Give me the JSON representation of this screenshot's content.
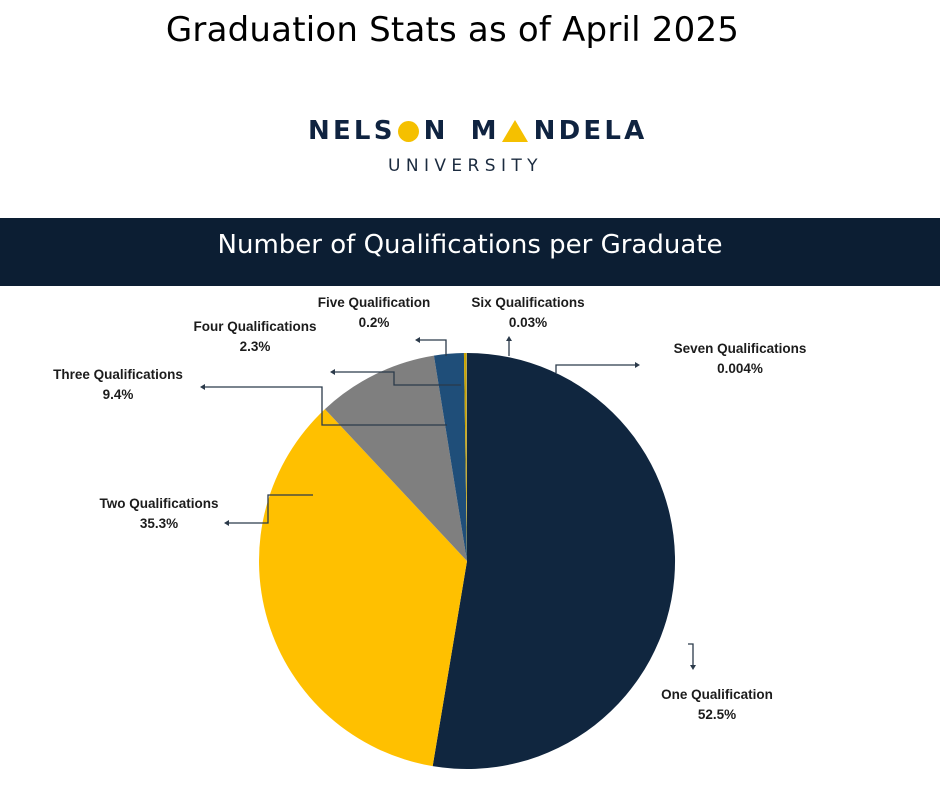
{
  "page_title": "Graduation Stats as of April 2025",
  "logo": {
    "word1_part1": "NELS",
    "word1_part2": "N",
    "word2_part1": "M",
    "word2_part2": "NDELA",
    "subtitle": "UNIVERSITY"
  },
  "chart_data": {
    "type": "pie",
    "title": "Number of Qualifications per Graduate",
    "slices": [
      {
        "label": "One Qualification",
        "value_label": "52.5%",
        "value": 52.5,
        "color": "#10263f"
      },
      {
        "label": "Two Qualifications",
        "value_label": "35.3%",
        "value": 35.3,
        "color": "#ffc000"
      },
      {
        "label": "Three Qualifications",
        "value_label": "9.4%",
        "value": 9.4,
        "color": "#7f7f7f"
      },
      {
        "label": "Four Qualifications",
        "value_label": "2.3%",
        "value": 2.3,
        "color": "#1f4e79"
      },
      {
        "label": "Five Qualification",
        "value_label": "0.2%",
        "value": 0.2,
        "color": "#c9a400"
      },
      {
        "label": "Six Qualifications",
        "value_label": "0.03%",
        "value": 0.03,
        "color": "#a6a6a6"
      },
      {
        "label": "Seven Qualifications",
        "value_label": "0.004%",
        "value": 0.004,
        "color": "#4a4a4a"
      }
    ]
  }
}
